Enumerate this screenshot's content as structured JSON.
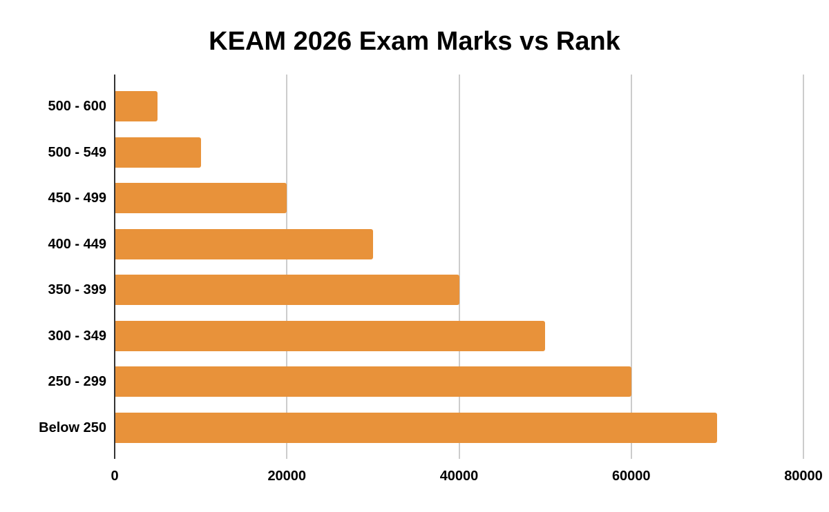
{
  "chart_data": {
    "type": "bar",
    "orientation": "horizontal",
    "title": "KEAM 2026 Exam Marks vs Rank",
    "xlabel": "",
    "ylabel": "",
    "categories": [
      "500 - 600",
      "500 - 549",
      "450 - 499",
      "400 - 449",
      "350 - 399",
      "300 - 349",
      "250 - 299",
      "Below 250"
    ],
    "values": [
      5000,
      10000,
      20000,
      30000,
      40000,
      50000,
      60000,
      70000
    ],
    "xlim": [
      0,
      80000
    ],
    "x_ticks": [
      "0",
      "20000",
      "40000",
      "60000",
      "80000"
    ],
    "grid": true,
    "legend": "none",
    "bar_color": "#E8923A"
  },
  "colors": {
    "bar": "#E8923A",
    "axis": "#333333",
    "grid": "#CCCCCC"
  }
}
